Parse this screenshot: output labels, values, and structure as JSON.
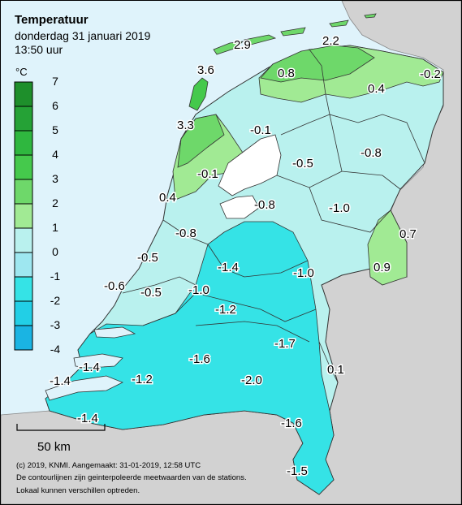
{
  "header": {
    "title": "Temperatuur",
    "date": "donderdag 31 januari 2019",
    "time": "13:50 uur"
  },
  "legend": {
    "unit": "°C",
    "ticks": [
      "7",
      "6",
      "5",
      "4",
      "3",
      "2",
      "1",
      "0",
      "-1",
      "-2",
      "-3",
      "-4"
    ],
    "bands": [
      {
        "from": 6,
        "to": 7,
        "color": "#1e8f2b"
      },
      {
        "from": 5,
        "to": 6,
        "color": "#25a236"
      },
      {
        "from": 4,
        "to": 5,
        "color": "#2fb73f"
      },
      {
        "from": 3,
        "to": 4,
        "color": "#45c94c"
      },
      {
        "from": 2,
        "to": 3,
        "color": "#6ed86a"
      },
      {
        "from": 1,
        "to": 2,
        "color": "#a1ea94"
      },
      {
        "from": 0,
        "to": 1,
        "color": "#b9f1ee"
      },
      {
        "from": -1,
        "to": 0,
        "color": "#9ee7f0"
      },
      {
        "from": -2,
        "to": -1,
        "color": "#35e3e6"
      },
      {
        "from": -3,
        "to": -2,
        "color": "#22cfe6"
      },
      {
        "from": -4,
        "to": -3,
        "color": "#1ab4e3"
      }
    ]
  },
  "map_colors": {
    "sea": "#dff3fb",
    "foreign": "#d2d2d2",
    "light_green": "#a1ea94",
    "green": "#6ed86a",
    "pale_cyan": "#b9f1ee",
    "cyan": "#35e3e6",
    "lake": "#ffffff"
  },
  "stations": [
    {
      "value": "2.9"
    },
    {
      "value": "2.2"
    },
    {
      "value": "3.6"
    },
    {
      "value": "0.8"
    },
    {
      "value": "-0.2"
    },
    {
      "value": "0.4"
    },
    {
      "value": "3.3"
    },
    {
      "value": "-0.1"
    },
    {
      "value": "-0.8"
    },
    {
      "value": "-0.5"
    },
    {
      "value": "-0.1"
    },
    {
      "value": "0.4"
    },
    {
      "value": "-0.8"
    },
    {
      "value": "-1.0"
    },
    {
      "value": "-0.8"
    },
    {
      "value": "0.7"
    },
    {
      "value": "-0.5"
    },
    {
      "value": "-1.4"
    },
    {
      "value": "-1.0"
    },
    {
      "value": "0.9"
    },
    {
      "value": "-0.6"
    },
    {
      "value": "-0.5"
    },
    {
      "value": "-1.0"
    },
    {
      "value": "-1.2"
    },
    {
      "value": "-1.7"
    },
    {
      "value": "-1.4"
    },
    {
      "value": "-1.6"
    },
    {
      "value": "0.1"
    },
    {
      "value": "-1.4"
    },
    {
      "value": "-1.2"
    },
    {
      "value": "-2.0"
    },
    {
      "value": "-1.4"
    },
    {
      "value": "-1.6"
    },
    {
      "value": "-1.5"
    }
  ],
  "scale_bar": {
    "label": "50 km"
  },
  "footer": {
    "line1": "(c) 2019, KNMI. Aangemaakt: 31-01-2019, 12:58 UTC",
    "line2": "De contourlijnen zijn geinterpoleerde meetwaarden van de stations.",
    "line3": "Lokaal kunnen verschillen optreden."
  }
}
